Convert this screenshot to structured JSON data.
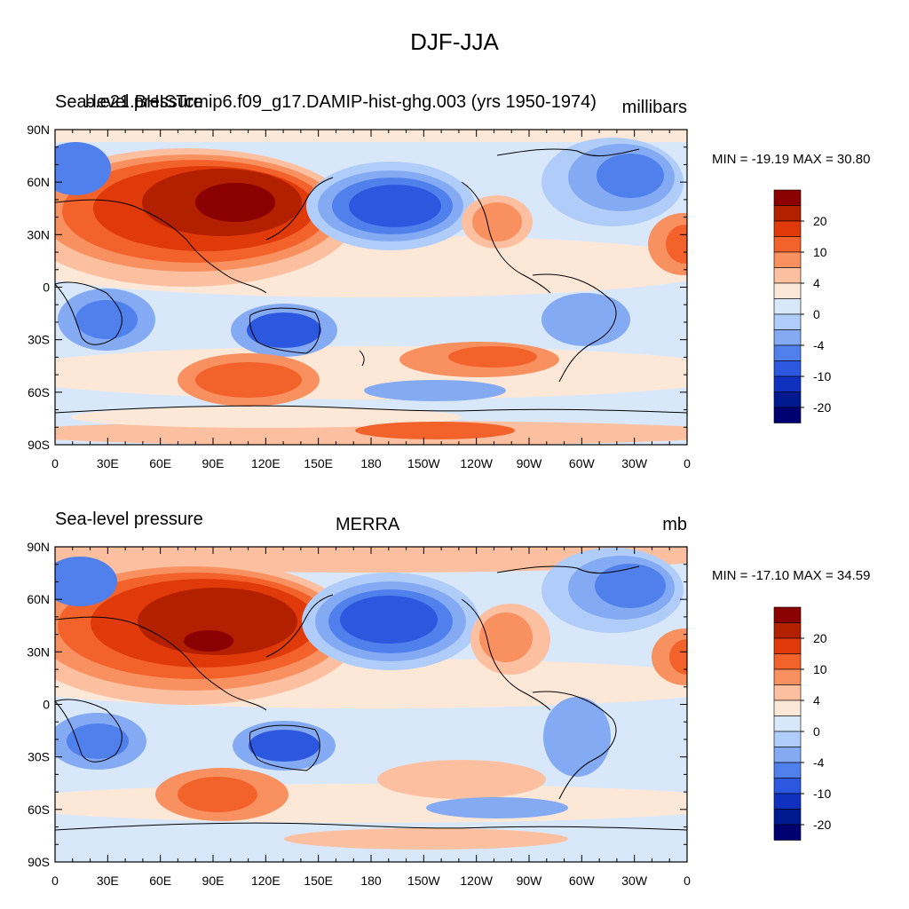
{
  "title": "DJF-JJA",
  "panels": [
    {
      "left_label": "Sea-level pressure",
      "center_label": "b.e21.BHISTcmip6.f09_g17.DAMIP-hist-ghg.003 (yrs 1950-1974)",
      "units": "millibars",
      "min_max": "MIN = -19.19 MAX =  30.80"
    },
    {
      "left_label": "Sea-level pressure",
      "center_label": "MERRA",
      "units": "mb",
      "min_max": "MIN = -17.10 MAX =  34.59"
    }
  ],
  "lat_ticks": [
    "90N",
    "60N",
    "30N",
    "0",
    "30S",
    "60S",
    "90S"
  ],
  "lon_ticks": [
    "0",
    "30E",
    "60E",
    "90E",
    "120E",
    "150E",
    "180",
    "150W",
    "120W",
    "90W",
    "60W",
    "30W",
    "0"
  ],
  "colorbar": {
    "labels": [
      "20",
      "10",
      "4",
      "0",
      "-4",
      "-10",
      "-20"
    ],
    "colors": [
      "#8b0000",
      "#b22000",
      "#e03a0a",
      "#f4622c",
      "#f89060",
      "#fcc0a0",
      "#fde8d8",
      "#d8e8fa",
      "#b0ccf8",
      "#84aaf4",
      "#5080ec",
      "#2c58e0",
      "#1030c0",
      "#001890",
      "#000070"
    ]
  },
  "colors": {
    "ocean_neutral": "#d8e8fa",
    "positive_strong": "#b22000",
    "negative_strong": "#2c58e0"
  }
}
